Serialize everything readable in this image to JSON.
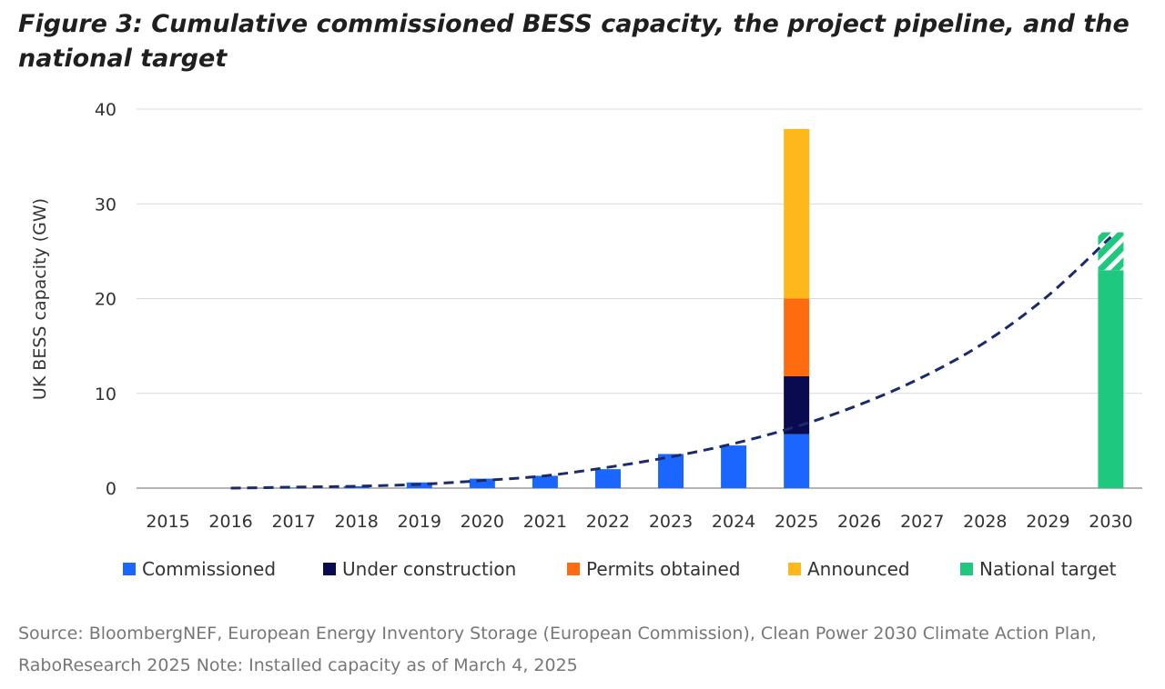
{
  "chart_data": {
    "type": "bar",
    "title": "Figure 3: Cumulative commissioned BESS capacity, the project pipeline, and the national target",
    "ylabel": "UK BESS  capacity (GW)",
    "xlabel": "",
    "ylim": [
      0,
      40
    ],
    "yticks": [
      0,
      10,
      20,
      30,
      40
    ],
    "grid": true,
    "legend_position": "bottom",
    "categories": [
      "2015",
      "2016",
      "2017",
      "2018",
      "2019",
      "2020",
      "2021",
      "2022",
      "2023",
      "2024",
      "2025",
      "2026",
      "2027",
      "2028",
      "2029",
      "2030"
    ],
    "stacked": true,
    "series": [
      {
        "name": "Commissioned",
        "color": "#1a66ff",
        "values": [
          0,
          0,
          0.05,
          0.2,
          0.6,
          1.0,
          1.3,
          2.0,
          3.6,
          4.5,
          5.7,
          0,
          0,
          0,
          0,
          0
        ]
      },
      {
        "name": "Under construction",
        "color": "#0a0a50",
        "values": [
          0,
          0,
          0,
          0,
          0,
          0,
          0,
          0,
          0,
          0,
          6.1,
          0,
          0,
          0,
          0,
          0
        ]
      },
      {
        "name": "Permits obtained",
        "color": "#ff6b0f",
        "values": [
          0,
          0,
          0,
          0,
          0,
          0,
          0,
          0,
          0,
          0,
          8.2,
          0,
          0,
          0,
          0,
          0
        ]
      },
      {
        "name": "Announced",
        "color": "#ffb81c",
        "values": [
          0,
          0,
          0,
          0,
          0,
          0,
          0,
          0,
          0,
          0,
          17.9,
          0,
          0,
          0,
          0,
          0
        ]
      },
      {
        "name": "National target",
        "color": "#1ec97f",
        "values": [
          0,
          0,
          0,
          0,
          0,
          0,
          0,
          0,
          0,
          0,
          0,
          0,
          0,
          0,
          0,
          23
        ],
        "range_top": 27
      }
    ],
    "trend_line": {
      "style": "dashed",
      "color": "#1a2a6c",
      "x": [
        "2016",
        "2017",
        "2018",
        "2019",
        "2020",
        "2021",
        "2022",
        "2023",
        "2024",
        "2025",
        "2026",
        "2027",
        "2028",
        "2029",
        "2030"
      ],
      "y": [
        0.0,
        0.1,
        0.2,
        0.4,
        0.8,
        1.3,
        2.2,
        3.3,
        4.7,
        6.5,
        8.8,
        11.7,
        15.4,
        20.3,
        26.5
      ]
    }
  },
  "source_text": "Source: BloombergNEF, European Energy Inventory Storage (European Commission), Clean Power 2030 Climate Action Plan, RaboResearch 2025 Note: Installed capacity as of March 4, 2025"
}
